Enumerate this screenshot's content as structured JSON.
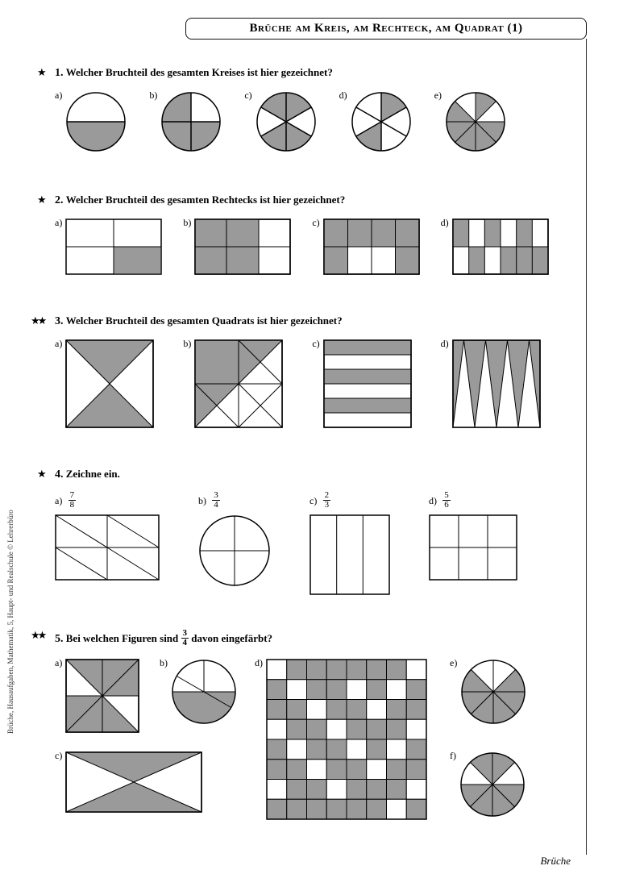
{
  "title": "Brüche am Kreis, am Rechteck, am Quadrat (1)",
  "footer": "Brüche",
  "side_text": "Brüche, Hausaufgaben, Mathematik, 5, Haupt- und Realschule © Lehrerbüro",
  "colors": {
    "fill": "#9a9a9a",
    "stroke": "#000000",
    "bg": "#ffffff"
  },
  "exercises": [
    {
      "num": "1.",
      "stars": 1,
      "text": "Welcher Bruchteil des gesamten Kreises ist hier gezeichnet?",
      "labels": [
        "a)",
        "b)",
        "c)",
        "d)",
        "e)"
      ]
    },
    {
      "num": "2.",
      "stars": 1,
      "text": "Welcher Bruchteil des gesamten Rechtecks ist hier gezeichnet?",
      "labels": [
        "a)",
        "b)",
        "c)",
        "d)"
      ]
    },
    {
      "num": "3.",
      "stars": 2,
      "text": "Welcher Bruchteil des gesamten Quadrats ist hier gezeichnet?",
      "labels": [
        "a)",
        "b)",
        "c)",
        "d)"
      ]
    },
    {
      "num": "4.",
      "stars": 1,
      "text": "Zeichne ein.",
      "labels": [
        "a)",
        "b)",
        "c)",
        "d)"
      ],
      "fracs": [
        [
          7,
          8
        ],
        [
          3,
          4
        ],
        [
          2,
          3
        ],
        [
          5,
          6
        ]
      ]
    },
    {
      "num": "5.",
      "stars": 2,
      "text_pre": "Bei welchen Figuren sind ",
      "frac": [
        3,
        4
      ],
      "text_post": " davon eingefärbt?",
      "labels": [
        "a)",
        "b)",
        "c)",
        "d)",
        "e)",
        "f)"
      ]
    }
  ]
}
